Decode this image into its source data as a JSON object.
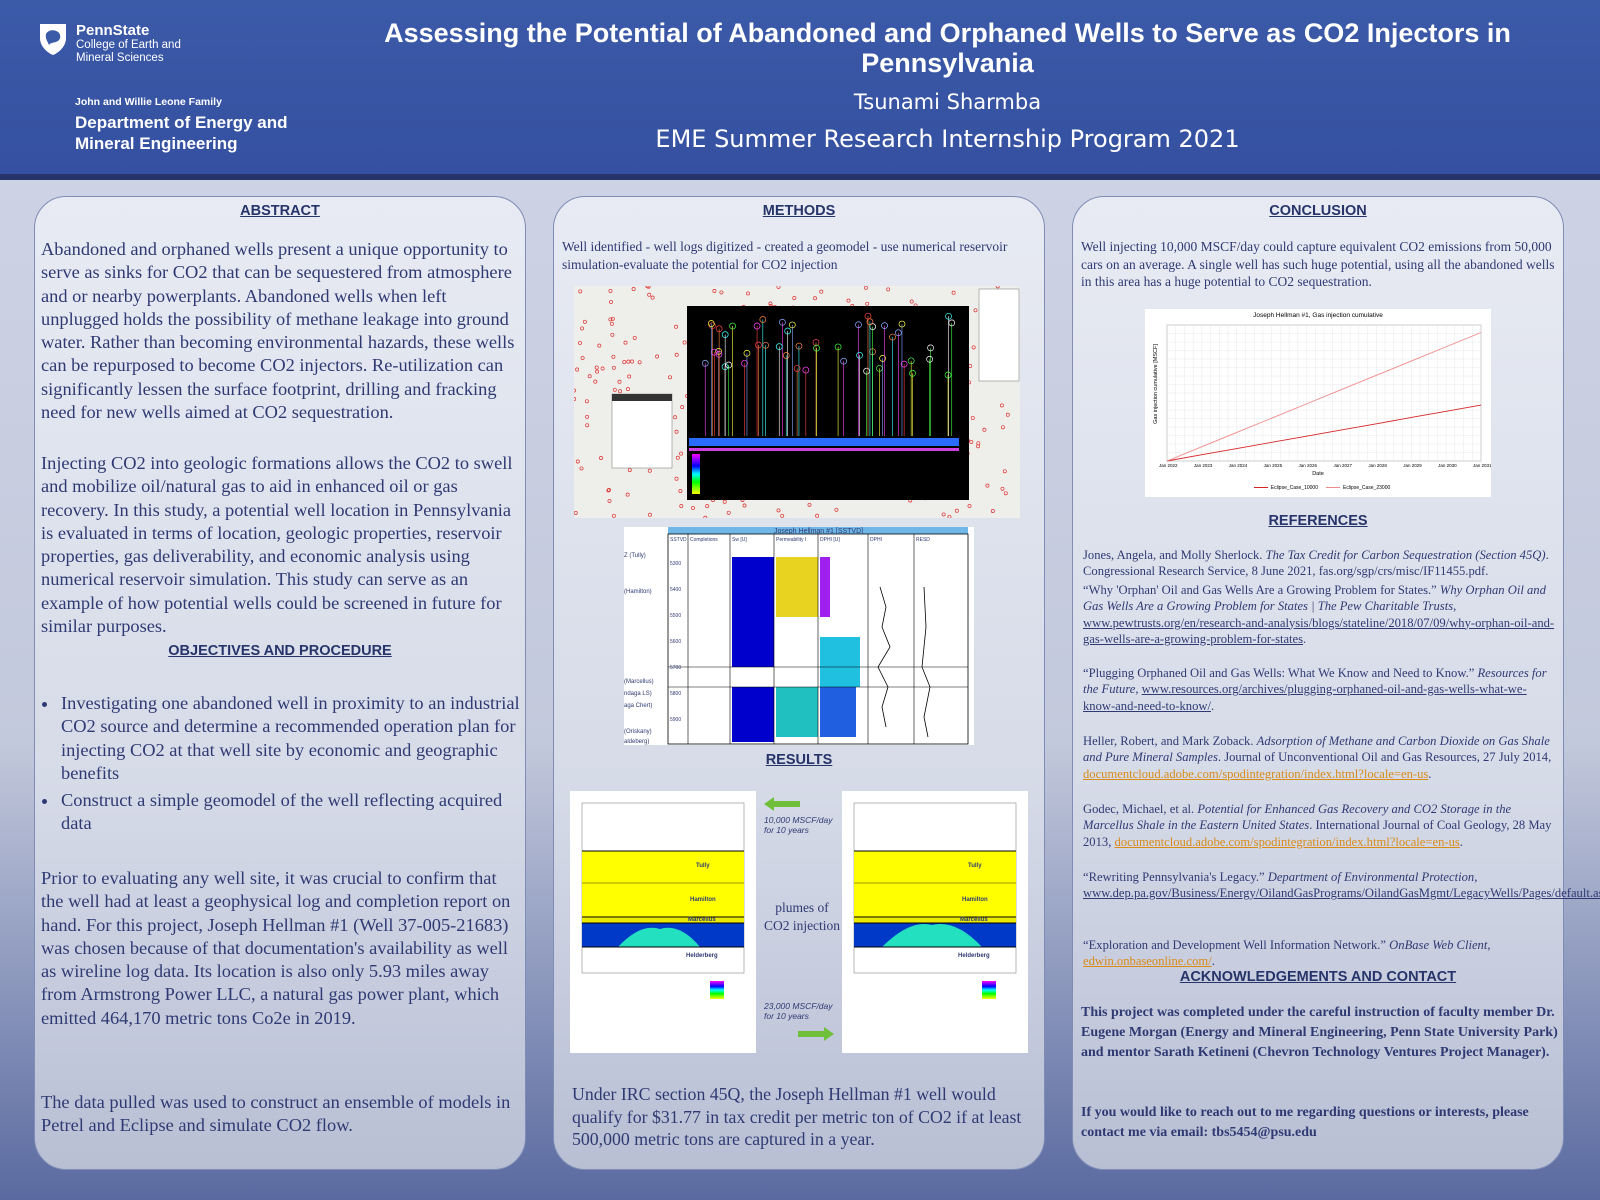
{
  "header": {
    "logo_name": "PennState",
    "logo_college": "College of Earth and Mineral Sciences",
    "dept_family": "John and Willie Leone Family",
    "dept_name": "Department of Energy and Mineral Engineering",
    "title": "Assessing the Potential of Abandoned and Orphaned Wells to Serve as CO2 Injectors in Pennsylvania",
    "author": "Tsunami Sharmba",
    "program": "EME Summer Research Internship Program 2021"
  },
  "abstract": {
    "heading": "ABSTRACT",
    "p1": "Abandoned and orphaned wells present a unique opportunity to serve as sinks for CO2 that can be sequestered from atmosphere and or nearby powerplants. Abandoned wells when left unplugged holds the possibility of methane leakage into ground water. Rather than becoming environmental hazards, these wells can be repurposed to become CO2 injectors. Re-utilization can significantly lessen the surface footprint, drilling and fracking need for new wells aimed at CO2 sequestration.",
    "p2": "Injecting CO2 into geologic formations allows the CO2 to swell and mobilize oil/natural gas to aid in enhanced oil or gas recovery. In this study, a potential well location in Pennsylvania is evaluated in terms of location, geologic properties, reservoir properties, gas deliverability, and economic analysis using numerical reservoir simulation. This study can serve as an example of how potential wells could be screened in future for similar purposes."
  },
  "objectives": {
    "heading": "OBJECTIVES AND PROCEDURE",
    "items": [
      "Investigating one abandoned well in proximity to an industrial CO2 source and determine a recommended operation plan for injecting CO2 at that well site by economic and geographic benefits",
      "Construct a simple geomodel of the well reflecting acquired data"
    ],
    "p3": "Prior to evaluating any well site, it was crucial to confirm that the well had at least a geophysical log and completion report on hand. For this project, Joseph Hellman #1 (Well 37-005-21683) was chosen because of that documentation's availability as well as wireline log data. Its location is also only 5.93 miles away from Armstrong Power LLC, a natural gas power plant, which emitted 464,170 metric tons Co2e in 2019.",
    "p4": "The data pulled was used to construct an ensemble of models in Petrel and Eclipse and simulate CO2 flow."
  },
  "methods": {
    "heading": "METHODS",
    "text": "Well identified - well logs digitized - created a geomodel - use numerical reservoir simulation-evaluate the potential for CO2 injection",
    "log_title": "Joseph Hellman #1 [SSTVD]",
    "log_headers": [
      "SSTVD",
      "Completions",
      "Sw [U]",
      "Permeability I",
      "DPHI [U]",
      "DPHI",
      "RESD"
    ],
    "log_tops": [
      "Z (Tully)",
      "(Hamilton)",
      "(Marcellus)",
      "ndaga LS)",
      "aga Chert)",
      "(Oriskany)",
      "aldeberg)"
    ],
    "log_depths": [
      "5300",
      "5400",
      "5500",
      "5600",
      "5700",
      "5800",
      "5900"
    ]
  },
  "results": {
    "heading": "RESULTS",
    "rate1": "10,000 MSCF/day for 10 years",
    "rate2": "23,000 MSCF/day for 10 years",
    "plume_label": "plumes of CO2 injection",
    "layers": [
      "Tully",
      "Hamilton",
      "Marcellus",
      "Helderberg"
    ],
    "summary": "Under IRC section 45Q, the Joseph Hellman #1 well would qualify for $31.77 in tax credit per metric ton of CO2 if at least 500,000 metric tons are captured in a year."
  },
  "conclusion": {
    "heading": "CONCLUSION",
    "text": "Well injecting 10,000 MSCF/day could capture equivalent CO2 emissions from 50,000 cars on an average. A single well has such huge potential, using all the abandoned wells in this area has a huge potential to CO2 sequestration."
  },
  "chart_data": {
    "type": "line",
    "title": "Joseph Hellman #1, Gas injection cumulative",
    "xlabel": "Date",
    "ylabel": "Gas injection cumulative [MSCF]",
    "x": [
      "Jan 2022",
      "Jan 2023",
      "Jan 2024",
      "Jan 2025",
      "Jan 2026",
      "Jan 2027",
      "Jan 2028",
      "Jan 2029",
      "Jan 2030",
      "Jan 2031"
    ],
    "series": [
      {
        "name": "Eclipse_Case_10000",
        "color": "#d62728",
        "values": [
          0,
          0.37,
          0.73,
          1.1,
          1.46,
          1.83,
          2.19,
          2.56,
          2.92,
          3.29
        ]
      },
      {
        "name": "Eclipse_Case_23000",
        "color": "#f08a8a",
        "values": [
          0,
          0.84,
          1.68,
          2.52,
          3.36,
          4.2,
          5.04,
          5.88,
          6.72,
          7.56
        ]
      }
    ],
    "grid": true,
    "legend": "bottom"
  },
  "references": {
    "heading": "REFERENCES",
    "r1a": "Jones, Angela, and Molly Sherlock. ",
    "r1b": "The Tax Credit for Carbon Sequestration (Section 45Q)",
    "r1c": ". Congressional Research Service, 8 June 2021, fas.org/sgp/crs/misc/IF11455.pdf.",
    "r2a": "“Why 'Orphan' Oil and Gas Wells Are a Growing Problem for States.” ",
    "r2b": "Why Orphan Oil and Gas Wells Are a Growing Problem for States | The Pew Charitable Trusts",
    "r2c": ", ",
    "r2link": "www.pewtrusts.org/en/research-and-analysis/blogs/stateline/2018/07/09/why-orphan-oil-and-gas-wells-are-a-growing-problem-for-states",
    "r2d": ".",
    "r3a": "“Plugging Orphaned Oil and Gas Wells: What We Know and Need to Know.” ",
    "r3b": "Resources for the Future",
    "r3c": ", ",
    "r3link": "www.resources.org/archives/plugging-orphaned-oil-and-gas-wells-what-we-know-and-need-to-know/",
    "r3d": ".",
    "r4a": "Heller, Robert, and Mark Zoback. ",
    "r4b": "Adsorption of Methane and Carbon Dioxide on Gas Shale and Pure Mineral Samples",
    "r4c": ". Journal of Unconventional Oil and Gas Resources, 27 July 2014, ",
    "r4link": "documentcloud.adobe.com/spodintegration/index.html?locale=en-us",
    "r4d": ".",
    "r5a": "Godec, Michael, et al. ",
    "r5b": "Potential for Enhanced Gas Recovery and CO2 Storage in the Marcellus Shale in the Eastern United States",
    "r5c": ". International Journal of Coal Geology, 28 May 2013, ",
    "r5link": "documentcloud.adobe.com/spodintegration/index.html?locale=en-us",
    "r5d": ".",
    "r6a": "“Rewriting Pennsylvania's Legacy.” ",
    "r6b": "Department of Environmental Protection",
    "r6c": ", ",
    "r6link": "www.dep.pa.gov/Business/Energy/OilandGasPrograms/OilandGasMgmt/LegacyWells/Pages/default.aspx",
    "r6d": ".",
    "r7a": "“Exploration and Development Well Information Network.” ",
    "r7b": "OnBase Web Client",
    "r7c": ", ",
    "r7link": "edwin.onbaseonline.com/",
    "r7d": "."
  },
  "acknowledgements": {
    "heading": "ACKNOWLEDGEMENTS AND CONTACT",
    "p1": "This project was completed under the careful instruction of faculty member Dr. Eugene Morgan (Energy and Mineral Engineering, Penn State University Park) and mentor Sarath Ketineni (Chevron Technology Ventures Project Manager).",
    "p2": "If you would like to reach out to me regarding questions or interests, please contact me via email: tbs5454@psu.edu"
  },
  "colors": {
    "banner": "#3b5aa8",
    "accent_link": "#d98b1a",
    "text": "#2f3a73"
  }
}
